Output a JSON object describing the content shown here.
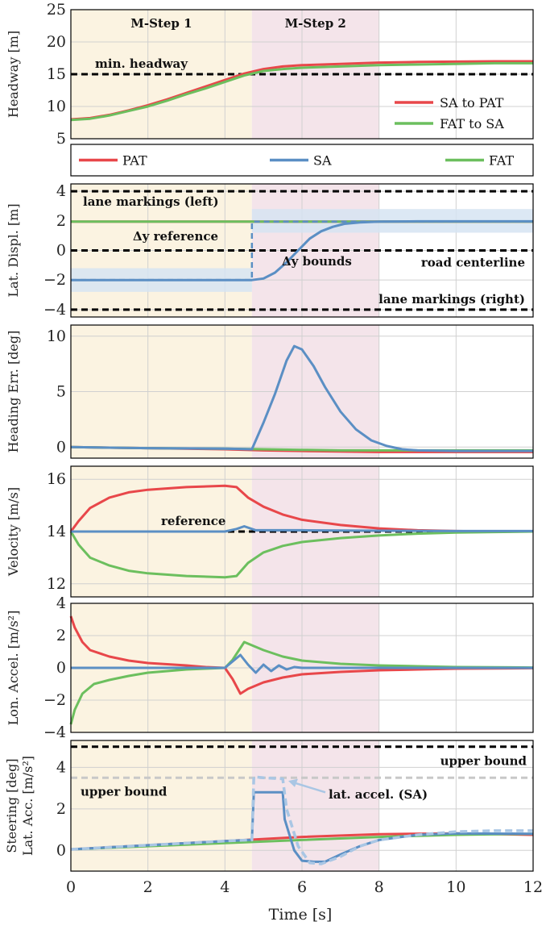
{
  "colors": {
    "PAT": "#e8474a",
    "SA": "#5b8fc4",
    "FAT": "#6cbf5e",
    "step1": "#fbf3e1",
    "step2": "#f4e4ea",
    "bandSA": "#d6e4f2",
    "gray": "#c8c8c8",
    "step1Text": "#f0b540",
    "step2Text": "#b0263c"
  },
  "chart_data": {
    "type": "line",
    "xlabel": "Time [s]",
    "xlim": [
      0,
      12
    ],
    "xticks": [
      "0",
      "2",
      "4",
      "6",
      "8",
      "10",
      "12"
    ],
    "phases": [
      {
        "label": "M-Step 1",
        "start": 0,
        "end": 4.7
      },
      {
        "label": "M-Step 2",
        "start": 4.7,
        "end": 8.0
      }
    ],
    "legend": {
      "PAT": "PAT",
      "SA": "SA",
      "FAT": "FAT"
    },
    "panels": [
      {
        "id": "headway",
        "ylabel": "Headway [m]",
        "ylim": [
          5,
          25
        ],
        "yticks": [
          5,
          10,
          15,
          20,
          25
        ],
        "series": [
          {
            "name": "SA to PAT",
            "color": "PAT",
            "x": [
              0,
              0.5,
              1,
              1.5,
              2,
              2.5,
              3,
              3.5,
              4,
              4.5,
              5,
              5.5,
              6,
              7,
              8,
              9,
              10,
              11,
              12
            ],
            "y": [
              8,
              8.2,
              8.7,
              9.4,
              10.2,
              11.1,
              12.1,
              13.1,
              14.1,
              15.1,
              15.8,
              16.2,
              16.4,
              16.6,
              16.8,
              16.9,
              16.95,
              17,
              17
            ]
          },
          {
            "name": "FAT to SA",
            "color": "FAT",
            "x": [
              0,
              0.5,
              1,
              1.5,
              2,
              2.5,
              3,
              3.5,
              4,
              4.5,
              5,
              5.5,
              6,
              7,
              8,
              9,
              10,
              11,
              12
            ],
            "y": [
              7.9,
              8.1,
              8.6,
              9.3,
              10,
              10.9,
              11.9,
              12.8,
              13.8,
              14.8,
              15.5,
              15.8,
              16,
              16.2,
              16.4,
              16.5,
              16.6,
              16.7,
              16.7
            ]
          }
        ],
        "hlines": [
          {
            "y": 15,
            "label": "min. headway"
          }
        ],
        "legend": [
          "SA to PAT",
          "FAT to SA"
        ]
      },
      {
        "id": "lat",
        "ylabel": "Lat. Displ. [m]",
        "ylim": [
          -4.5,
          4.5
        ],
        "yticks": [
          -4,
          -2,
          0,
          2,
          4
        ],
        "series": [
          {
            "name": "PAT",
            "color": "PAT",
            "x": [
              0,
              12
            ],
            "y": [
              1.95,
              1.95
            ]
          },
          {
            "name": "FAT",
            "color": "FAT",
            "x": [
              0,
              12
            ],
            "y": [
              1.95,
              1.95
            ]
          },
          {
            "name": "SA",
            "color": "SA",
            "x": [
              0,
              1,
              2,
              3,
              4,
              4.7,
              5,
              5.3,
              5.6,
              5.9,
              6.2,
              6.5,
              6.8,
              7.1,
              7.5,
              8,
              9,
              10,
              11,
              12
            ],
            "y": [
              -2,
              -2,
              -2,
              -2,
              -2,
              -2,
              -1.9,
              -1.5,
              -0.8,
              0,
              0.8,
              1.3,
              1.6,
              1.8,
              1.9,
              1.95,
              1.97,
              1.97,
              1.97,
              1.97
            ]
          }
        ],
        "hlines": [
          {
            "y": 4,
            "label": "lane markings (left)"
          },
          {
            "y": 0,
            "label": "road centerline"
          },
          {
            "y": -4,
            "label": "lane markings (right)"
          }
        ],
        "annotations": [
          "Δy  reference",
          "Δy  bounds"
        ]
      },
      {
        "id": "heading",
        "ylabel": "Heading Err. [deg]",
        "ylim": [
          -1,
          11
        ],
        "yticks": [
          0,
          5,
          10
        ],
        "series": [
          {
            "name": "PAT",
            "color": "PAT",
            "x": [
              0,
              2,
              4,
              5,
              6,
              7,
              8,
              9,
              10,
              11,
              12
            ],
            "y": [
              0,
              -0.1,
              -0.2,
              -0.3,
              -0.35,
              -0.4,
              -0.45,
              -0.45,
              -0.45,
              -0.45,
              -0.45
            ]
          },
          {
            "name": "FAT",
            "color": "FAT",
            "x": [
              0,
              2,
              4,
              5,
              6,
              7,
              8,
              9,
              10,
              11,
              12
            ],
            "y": [
              0,
              -0.1,
              -0.15,
              -0.2,
              -0.25,
              -0.3,
              -0.3,
              -0.3,
              -0.3,
              -0.3,
              -0.3
            ]
          },
          {
            "name": "SA",
            "color": "SA",
            "x": [
              0,
              2,
              4,
              4.7,
              5,
              5.3,
              5.6,
              5.8,
              6,
              6.3,
              6.6,
              7,
              7.4,
              7.8,
              8.2,
              8.6,
              9,
              10,
              11,
              12
            ],
            "y": [
              0,
              -0.1,
              -0.15,
              -0.2,
              2.2,
              4.8,
              7.8,
              9.1,
              8.8,
              7.3,
              5.4,
              3.2,
              1.6,
              0.6,
              0.1,
              -0.2,
              -0.3,
              -0.35,
              -0.35,
              -0.35
            ]
          }
        ]
      },
      {
        "id": "velocity",
        "ylabel": "Velocity [m/s]",
        "ylim": [
          11.5,
          16.5
        ],
        "yticks": [
          12,
          14,
          16
        ],
        "series": [
          {
            "name": "PAT",
            "color": "PAT",
            "x": [
              0,
              0.2,
              0.5,
              1,
              1.5,
              2,
              3,
              4,
              4.3,
              4.6,
              5,
              5.5,
              6,
              7,
              8,
              9,
              10,
              11,
              12
            ],
            "y": [
              14,
              14.4,
              14.9,
              15.3,
              15.5,
              15.6,
              15.7,
              15.75,
              15.7,
              15.3,
              14.95,
              14.65,
              14.45,
              14.25,
              14.12,
              14.05,
              14.02,
              14,
              14
            ]
          },
          {
            "name": "FAT",
            "color": "FAT",
            "x": [
              0,
              0.2,
              0.5,
              1,
              1.5,
              2,
              3,
              4,
              4.3,
              4.6,
              5,
              5.5,
              6,
              7,
              8,
              9,
              10,
              11,
              12
            ],
            "y": [
              14,
              13.5,
              13,
              12.7,
              12.5,
              12.4,
              12.3,
              12.25,
              12.3,
              12.8,
              13.2,
              13.45,
              13.6,
              13.75,
              13.85,
              13.92,
              13.96,
              13.98,
              14
            ]
          },
          {
            "name": "SA",
            "color": "SA",
            "x": [
              0,
              1,
              2,
              3,
              4,
              4.3,
              4.5,
              4.8,
              5,
              6,
              8,
              10,
              12
            ],
            "y": [
              14,
              14,
              14,
              14,
              14,
              14.1,
              14.2,
              14.05,
              14.05,
              14.05,
              14.03,
              14.02,
              14.02
            ]
          }
        ],
        "hlines": [
          {
            "y": 14,
            "label": "reference"
          }
        ]
      },
      {
        "id": "lonacc",
        "ylabel": "Lon. Accel. [m/s²]",
        "ylim": [
          -4,
          4
        ],
        "yticks": [
          -4,
          -2,
          0,
          2,
          4
        ],
        "series": [
          {
            "name": "PAT",
            "color": "PAT",
            "x": [
              0,
              0.1,
              0.3,
              0.5,
              1,
              1.5,
              2,
              3,
              3.5,
              4,
              4.2,
              4.4,
              4.6,
              5,
              5.5,
              6,
              7,
              8,
              9,
              10,
              12
            ],
            "y": [
              3.2,
              2.5,
              1.6,
              1.1,
              0.7,
              0.45,
              0.3,
              0.15,
              0.05,
              0,
              -0.7,
              -1.6,
              -1.3,
              -0.9,
              -0.6,
              -0.4,
              -0.25,
              -0.15,
              -0.1,
              -0.05,
              -0.02
            ]
          },
          {
            "name": "FAT",
            "color": "FAT",
            "x": [
              0,
              0.1,
              0.3,
              0.6,
              1,
              1.5,
              2,
              3,
              3.5,
              4,
              4.2,
              4.5,
              4.7,
              5,
              5.5,
              6,
              7,
              8,
              9,
              10,
              12
            ],
            "y": [
              -3.5,
              -2.6,
              -1.6,
              -1,
              -0.75,
              -0.5,
              -0.3,
              -0.1,
              -0.05,
              0,
              0.5,
              1.6,
              1.4,
              1.1,
              0.7,
              0.45,
              0.25,
              0.15,
              0.1,
              0.05,
              0.02
            ]
          },
          {
            "name": "SA",
            "color": "SA",
            "x": [
              0,
              4,
              4.2,
              4.4,
              4.6,
              4.8,
              5,
              5.2,
              5.4,
              5.6,
              5.8,
              6,
              6.5,
              12
            ],
            "y": [
              0,
              0,
              0.4,
              0.8,
              0.2,
              -0.3,
              0.2,
              -0.2,
              0.15,
              -0.1,
              0.05,
              0,
              0,
              0
            ]
          }
        ]
      },
      {
        "id": "steering",
        "ylabel": "Steering [deg]",
        "ylabel2": "Lat. Acc. [m/s²]",
        "ylim": [
          -1,
          5.3
        ],
        "yticks": [
          0,
          2,
          4
        ],
        "series": [
          {
            "name": "PAT",
            "color": "PAT",
            "x": [
              0,
              2,
              4,
              6,
              8,
              10,
              12
            ],
            "y": [
              0.05,
              0.25,
              0.45,
              0.65,
              0.78,
              0.82,
              0.75
            ]
          },
          {
            "name": "FAT",
            "color": "FAT",
            "x": [
              0,
              2,
              4,
              6,
              8,
              10,
              12
            ],
            "y": [
              0.05,
              0.2,
              0.35,
              0.5,
              0.65,
              0.75,
              0.8
            ]
          },
          {
            "name": "SA",
            "color": "SA",
            "x": [
              0,
              2,
              4,
              4.6,
              4.7,
              4.75,
              5,
              5.5,
              5.55,
              5.8,
              6,
              6.3,
              6.6,
              7,
              7.5,
              8,
              9,
              10,
              12
            ],
            "y": [
              0.05,
              0.25,
              0.45,
              0.5,
              0.5,
              2.8,
              2.8,
              2.8,
              1.5,
              0,
              -0.5,
              -0.55,
              -0.55,
              -0.2,
              0.2,
              0.5,
              0.75,
              0.82,
              0.8
            ]
          },
          {
            "name": "lat. accel. (SA)",
            "color": "SA",
            "dashed": true,
            "x": [
              0,
              2,
              4,
              4.6,
              4.7,
              4.75,
              5,
              5.5,
              5.6,
              5.9,
              6.2,
              6.5,
              7,
              7.5,
              8,
              9,
              10,
              11,
              12
            ],
            "y": [
              0.05,
              0.25,
              0.45,
              0.5,
              0.5,
              3.55,
              3.5,
              3.45,
              2,
              0.2,
              -0.6,
              -0.65,
              -0.3,
              0.2,
              0.5,
              0.75,
              0.9,
              0.95,
              0.95
            ]
          }
        ],
        "hlines": [
          {
            "y": 5,
            "label": "upper bound",
            "color": "#000"
          },
          {
            "y": 3.5,
            "label": "upper bound",
            "color": "gray"
          }
        ],
        "annotations": [
          "lat. accel. (SA)"
        ]
      }
    ]
  }
}
